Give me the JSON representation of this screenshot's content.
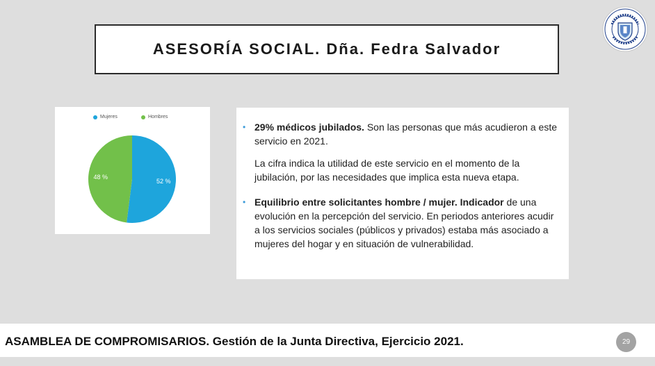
{
  "slide": {
    "title": "ASESORÍA SOCIAL. Dña. Fedra Salvador",
    "logo": {
      "icon": "seal-icon",
      "text": "Ilustre Colegio Oficial de Médicos de ASTURIAS"
    },
    "page_number": "29"
  },
  "chart_data": {
    "type": "pie",
    "legend": [
      "Mujeres",
      "Hombres"
    ],
    "legend_position": "top",
    "slices": [
      {
        "name": "Mujeres",
        "value": 52,
        "label": "52 %",
        "color": "#1ea5dc"
      },
      {
        "name": "Hombres",
        "value": 48,
        "label": "48 %",
        "color": "#72c04a"
      }
    ]
  },
  "content": {
    "bullet1_bold": "29% médicos jubilados.",
    "bullet1_text": " Son las personas que más acudieron a este servicio en 2021.",
    "bullet1_sub": "La cifra indica la utilidad de este servicio en el momento de la jubilación, por las necesidades que implica esta nueva etapa.",
    "bullet2_bold": "Equilibrio entre solicitantes hombre / mujer. Indicador",
    "bullet2_text": " de una evolución en la percepción del servicio. En periodos anteriores acudir a los servicios sociales (públicos y privados) estaba más asociado a mujeres del hogar y en situación de vulnerabilidad."
  },
  "footer": {
    "text": "ASAMBLEA DE COMPROMISARIOS. Gestión de la Junta Directiva, Ejercicio 2021."
  }
}
